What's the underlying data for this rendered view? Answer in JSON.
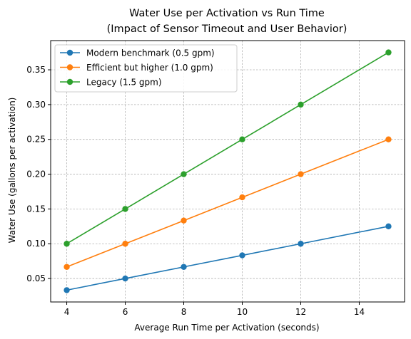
{
  "chart_data": {
    "type": "line",
    "title": "Water Use per Activation vs Run Time",
    "subtitle": "(Impact of Sensor Timeout and User Behavior)",
    "xlabel": "Average Run Time per Activation (seconds)",
    "ylabel": "Water Use (gallons per activation)",
    "x": [
      4,
      6,
      8,
      10,
      12,
      15
    ],
    "xlim": [
      3.45,
      15.55
    ],
    "ylim": [
      0.0163,
      0.392
    ],
    "xticks": [
      4,
      6,
      8,
      10,
      12,
      14
    ],
    "yticks": [
      0.05,
      0.1,
      0.15,
      0.2,
      0.25,
      0.3,
      0.35
    ],
    "grid": true,
    "legend_position": "top-left",
    "series": [
      {
        "name": "Modern benchmark (0.5 gpm)",
        "color": "#1f77b4",
        "values": [
          0.0333,
          0.05,
          0.0667,
          0.0833,
          0.1,
          0.125
        ]
      },
      {
        "name": "Efficient but higher (1.0 gpm)",
        "color": "#ff7f0e",
        "values": [
          0.0667,
          0.1,
          0.1333,
          0.1667,
          0.2,
          0.25
        ]
      },
      {
        "name": "Legacy (1.5 gpm)",
        "color": "#2ca02c",
        "values": [
          0.1,
          0.15,
          0.2,
          0.25,
          0.3,
          0.375
        ]
      }
    ]
  }
}
